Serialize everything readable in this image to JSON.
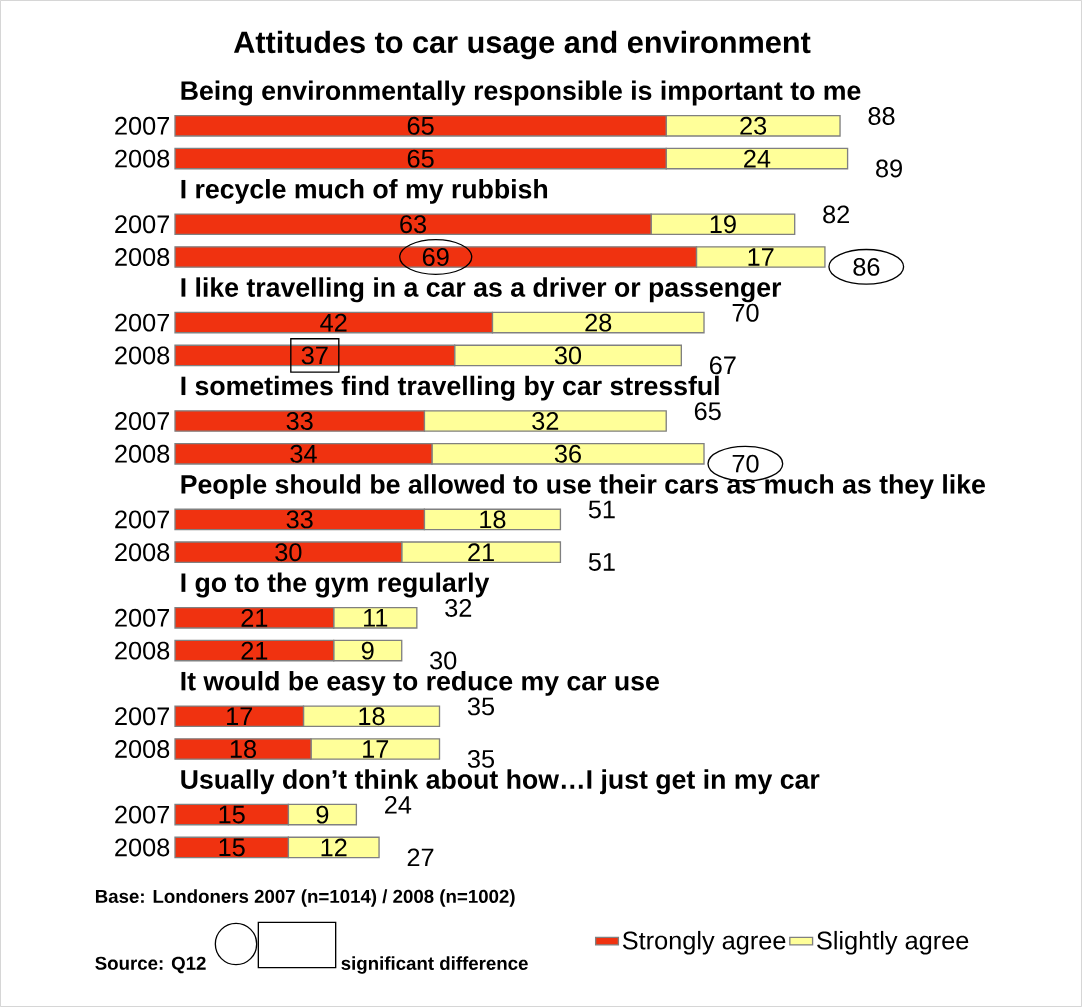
{
  "chart_data": {
    "type": "bar",
    "orientation": "horizontal",
    "stacked": true,
    "title": "Attitudes to car usage and environment",
    "categories": [
      "2007",
      "2008",
      "2007",
      "2008",
      "2007",
      "2008",
      "2007",
      "2008",
      "2007",
      "2008",
      "2007",
      "2008",
      "2007",
      "2008",
      "2007",
      "2008"
    ],
    "series": [
      {
        "name": "Strongly agree",
        "color": "#f03210",
        "values": [
          65,
          65,
          63,
          69,
          42,
          37,
          33,
          34,
          33,
          30,
          21,
          21,
          17,
          18,
          15,
          15
        ]
      },
      {
        "name": "Slightly agree",
        "color": "#ffff99",
        "values": [
          23,
          24,
          19,
          17,
          28,
          30,
          32,
          36,
          18,
          21,
          11,
          9,
          18,
          17,
          9,
          12
        ]
      }
    ],
    "totals": [
      "88",
      "89",
      "82",
      "86",
      "70",
      "67",
      "65",
      "70",
      "51",
      "51",
      "32",
      "30",
      "35",
      "35",
      "24",
      "27"
    ],
    "data_labels": true,
    "tick_labels": "y",
    "legend": "bottom right",
    "annotations": [
      "Being environmentally responsible is important to me",
      "I recycle much of my rubbish",
      "I like travelling in a car as a driver or passenger",
      "I sometimes find travelling by car stressful",
      "People should be allowed to use their cars as much as they like",
      "I go to the gym regularly",
      "It would be easy to reduce my car use",
      "Usually don’t think about how…I just get in my car",
      "Base: Londoners 2007 (n=1014) / 2008 (n=1002)",
      "Source: Q12",
      "significant difference"
    ]
  }
}
